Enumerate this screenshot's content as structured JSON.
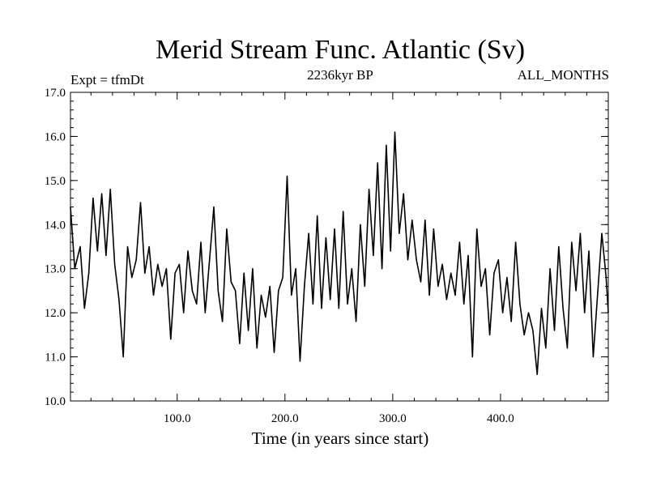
{
  "chart_data": {
    "type": "line",
    "title": "Merid Stream Func. Atlantic (Sv)",
    "subtitle_left": "Expt = tfmDt",
    "subtitle_center": "2236kyr BP",
    "subtitle_right": "ALL_MONTHS",
    "xlabel": "Time (in years since start)",
    "ylabel": "",
    "xlim": [
      1,
      500
    ],
    "ylim": [
      10.0,
      17.0
    ],
    "x_ticks": [
      100,
      200,
      300,
      400
    ],
    "x_tick_labels": [
      "100.0",
      "200.0",
      "300.0",
      "400.0"
    ],
    "y_ticks": [
      10,
      11,
      12,
      13,
      14,
      15,
      16,
      17
    ],
    "y_tick_labels": [
      "10.0",
      "11.0",
      "12.0",
      "13.0",
      "14.0",
      "15.0",
      "16.0",
      "17.0"
    ],
    "series": [
      {
        "name": "Merid Stream Func. Atlantic",
        "x": [
          1,
          5,
          10,
          14,
          18,
          22,
          26,
          30,
          34,
          38,
          42,
          46,
          50,
          54,
          58,
          62,
          66,
          70,
          74,
          78,
          82,
          86,
          90,
          94,
          98,
          102,
          106,
          110,
          114,
          118,
          122,
          126,
          130,
          134,
          138,
          142,
          146,
          150,
          154,
          158,
          162,
          166,
          170,
          174,
          178,
          182,
          186,
          190,
          194,
          198,
          202,
          206,
          210,
          214,
          218,
          222,
          226,
          230,
          234,
          238,
          242,
          246,
          250,
          254,
          258,
          262,
          266,
          270,
          274,
          278,
          282,
          286,
          290,
          294,
          298,
          302,
          306,
          310,
          314,
          318,
          322,
          326,
          330,
          334,
          338,
          342,
          346,
          350,
          354,
          358,
          362,
          366,
          370,
          374,
          378,
          382,
          386,
          390,
          394,
          398,
          402,
          406,
          410,
          414,
          418,
          422,
          426,
          430,
          434,
          438,
          442,
          446,
          450,
          454,
          458,
          462,
          466,
          470,
          474,
          478,
          482,
          486,
          490,
          494,
          498,
          500
        ],
        "values": [
          14.4,
          13.0,
          13.5,
          12.1,
          12.9,
          14.6,
          13.4,
          14.7,
          13.3,
          14.8,
          13.1,
          12.3,
          11.0,
          13.5,
          12.8,
          13.2,
          14.5,
          12.9,
          13.5,
          12.4,
          13.1,
          12.6,
          13.0,
          11.4,
          12.9,
          13.1,
          12.0,
          13.4,
          12.5,
          12.2,
          13.6,
          12.0,
          13.2,
          14.4,
          12.5,
          11.8,
          13.9,
          12.7,
          12.5,
          11.3,
          12.9,
          11.6,
          13.0,
          11.2,
          12.4,
          11.9,
          12.6,
          11.1,
          12.5,
          12.8,
          15.1,
          12.4,
          13.0,
          10.9,
          12.6,
          13.8,
          12.2,
          14.2,
          12.1,
          13.7,
          12.3,
          13.9,
          12.1,
          14.3,
          12.2,
          13.0,
          11.8,
          14.0,
          12.6,
          14.8,
          13.3,
          15.4,
          13.0,
          15.8,
          13.4,
          16.1,
          13.8,
          14.7,
          13.2,
          14.1,
          13.2,
          12.7,
          14.1,
          12.4,
          13.9,
          12.6,
          13.1,
          12.3,
          12.9,
          12.4,
          13.6,
          12.2,
          13.3,
          11.0,
          13.9,
          12.6,
          13.0,
          11.5,
          12.9,
          13.2,
          12.0,
          12.8,
          11.8,
          13.6,
          12.2,
          11.5,
          12.0,
          11.6,
          10.6,
          12.1,
          11.2,
          13.0,
          11.6,
          13.5,
          12.1,
          11.2,
          13.6,
          12.5,
          13.8,
          12.0,
          13.4,
          11.0,
          12.4,
          13.8,
          12.8,
          12.0
        ]
      }
    ]
  }
}
